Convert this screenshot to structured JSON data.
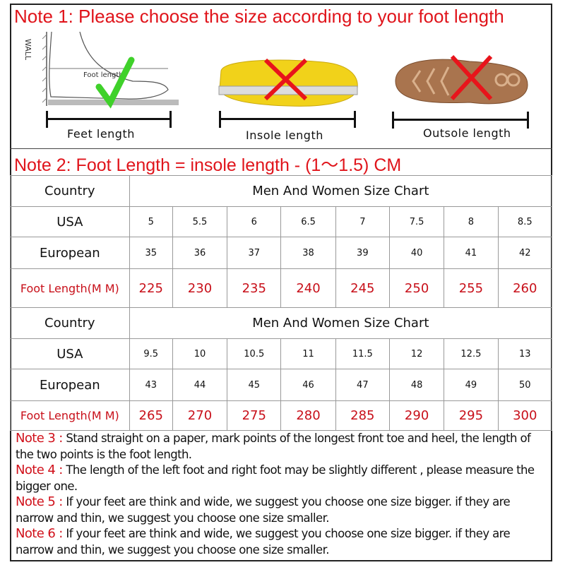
{
  "note1": "Note 1: Please choose the size according to your foot length",
  "illustrations": {
    "wall_label": "WALL",
    "foot_length_label": "Foot length",
    "feet_caption": "Feet length",
    "insole_caption": "Insole length",
    "outsole_caption": "Outsole length",
    "feet_mark": "check-icon",
    "insole_mark": "cross-icon",
    "outsole_mark": "cross-icon",
    "check_color": "#3fd12a",
    "cross_color": "#e8141b"
  },
  "note2": "Note 2: Foot Length = insole length  -  (1～1.5) CM",
  "tables": [
    {
      "country_label": "Country",
      "title": "Men And Women Size Chart",
      "usa_label": "USA",
      "usa": [
        "5",
        "5.5",
        "6",
        "6.5",
        "7",
        "7.5",
        "8",
        "8.5"
      ],
      "eu_label": "European",
      "eu": [
        "35",
        "36",
        "37",
        "38",
        "39",
        "40",
        "41",
        "42"
      ],
      "foot_label": "Foot Length(M M)",
      "foot": [
        "225",
        "230",
        "235",
        "240",
        "245",
        "250",
        "255",
        "260"
      ]
    },
    {
      "country_label": "Country",
      "title": "Men And Women Size Chart",
      "usa_label": "USA",
      "usa": [
        "9.5",
        "10",
        "10.5",
        "11",
        "11.5",
        "12",
        "12.5",
        "13"
      ],
      "eu_label": "European",
      "eu": [
        "43",
        "44",
        "45",
        "46",
        "47",
        "48",
        "49",
        "50"
      ],
      "foot_label": "Foot Length(M M)",
      "foot": [
        "265",
        "270",
        "275",
        "280",
        "285",
        "290",
        "295",
        "300"
      ]
    }
  ],
  "notes": [
    {
      "label": "Note 3 :",
      "text": " Stand straight on a paper, mark points of the longest front toe and heel, the length of the two points is the foot length."
    },
    {
      "label": "Note 4 :",
      "text": " The length of the left foot and right foot may be slightly different , please measure the bigger one."
    },
    {
      "label": "Note 5 :",
      "text": " If your feet are think and wide, we suggest you choose one size bigger. if they are narrow and thin, we suggest you choose one size smaller."
    },
    {
      "label": "Note 6 :",
      "text": " If your feet are think and wide, we suggest you choose one size bigger. if they are narrow and thin, we suggest you choose one size smaller."
    }
  ]
}
